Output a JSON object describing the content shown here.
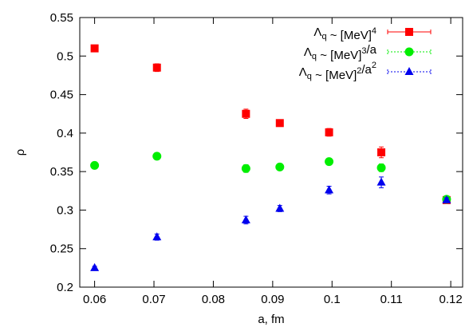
{
  "chart_data": {
    "type": "scatter",
    "xlabel": "a, fm",
    "ylabel": "ρ",
    "xlim": [
      0.0575,
      0.122
    ],
    "ylim": [
      0.2,
      0.55
    ],
    "xticks": [
      0.06,
      0.07,
      0.08,
      0.09,
      0.1,
      0.11,
      0.12
    ],
    "yticks": [
      0.2,
      0.25,
      0.3,
      0.35,
      0.4,
      0.45,
      0.5,
      0.55
    ],
    "legend": "top-right",
    "x": [
      0.06,
      0.0705,
      0.0855,
      0.0912,
      0.0995,
      0.1083,
      0.1193
    ],
    "series": [
      {
        "name": "Λq ~ [MeV]4",
        "color": "#ff0000",
        "marker": "square",
        "values": [
          0.51,
          0.485,
          0.425,
          0.413,
          0.401,
          0.375,
          0.313
        ],
        "errors": [
          0.004,
          0.005,
          0.006,
          0.004,
          0.005,
          0.007,
          0.003
        ]
      },
      {
        "name": "Λq ~ [MeV]3/a",
        "color": "#00ee00",
        "marker": "circle",
        "values": [
          0.358,
          0.37,
          0.354,
          0.356,
          0.363,
          0.355,
          0.314
        ],
        "errors": [
          0.003,
          0.004,
          0.005,
          0.003,
          0.004,
          0.005,
          0.003
        ]
      },
      {
        "name": "Λq ~ [MeV]2/a2",
        "color": "#0000ee",
        "marker": "triangle",
        "values": [
          0.225,
          0.265,
          0.287,
          0.302,
          0.326,
          0.336,
          0.313
        ],
        "errors": [
          0.002,
          0.004,
          0.005,
          0.004,
          0.005,
          0.007,
          0.003
        ]
      }
    ]
  }
}
